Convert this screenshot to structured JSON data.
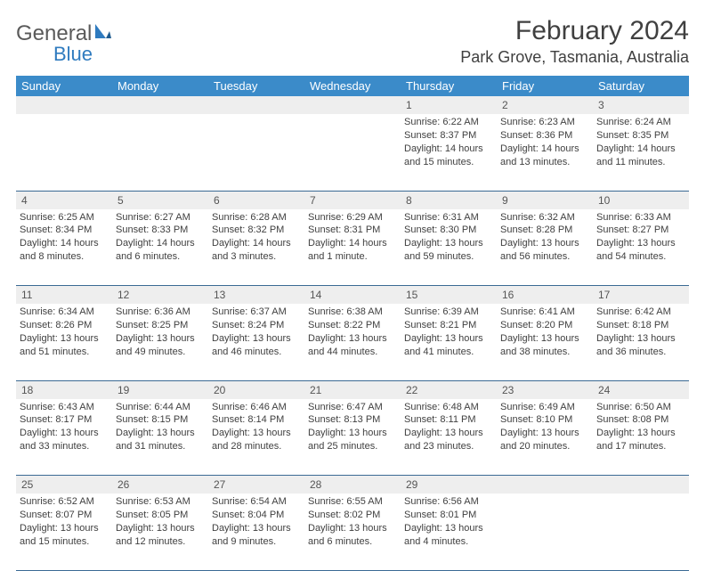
{
  "logo": {
    "text1": "General",
    "text2": "Blue"
  },
  "title": "February 2024",
  "location": "Park Grove, Tasmania, Australia",
  "colors": {
    "header_bg": "#3b8bc9",
    "header_fg": "#ffffff",
    "daynum_bg": "#eeeeee",
    "border": "#3b6a94",
    "logo_gray": "#5a5a5a",
    "logo_blue": "#2f7bbf"
  },
  "weekdays": [
    "Sunday",
    "Monday",
    "Tuesday",
    "Wednesday",
    "Thursday",
    "Friday",
    "Saturday"
  ],
  "weeks": [
    [
      null,
      null,
      null,
      null,
      {
        "n": "1",
        "sunrise": "6:22 AM",
        "sunset": "8:37 PM",
        "day_h": "14",
        "day_m": "15"
      },
      {
        "n": "2",
        "sunrise": "6:23 AM",
        "sunset": "8:36 PM",
        "day_h": "14",
        "day_m": "13"
      },
      {
        "n": "3",
        "sunrise": "6:24 AM",
        "sunset": "8:35 PM",
        "day_h": "14",
        "day_m": "11"
      }
    ],
    [
      {
        "n": "4",
        "sunrise": "6:25 AM",
        "sunset": "8:34 PM",
        "day_h": "14",
        "day_m": "8"
      },
      {
        "n": "5",
        "sunrise": "6:27 AM",
        "sunset": "8:33 PM",
        "day_h": "14",
        "day_m": "6"
      },
      {
        "n": "6",
        "sunrise": "6:28 AM",
        "sunset": "8:32 PM",
        "day_h": "14",
        "day_m": "3"
      },
      {
        "n": "7",
        "sunrise": "6:29 AM",
        "sunset": "8:31 PM",
        "day_h": "14",
        "day_m": "1",
        "singular": true
      },
      {
        "n": "8",
        "sunrise": "6:31 AM",
        "sunset": "8:30 PM",
        "day_h": "13",
        "day_m": "59"
      },
      {
        "n": "9",
        "sunrise": "6:32 AM",
        "sunset": "8:28 PM",
        "day_h": "13",
        "day_m": "56"
      },
      {
        "n": "10",
        "sunrise": "6:33 AM",
        "sunset": "8:27 PM",
        "day_h": "13",
        "day_m": "54"
      }
    ],
    [
      {
        "n": "11",
        "sunrise": "6:34 AM",
        "sunset": "8:26 PM",
        "day_h": "13",
        "day_m": "51"
      },
      {
        "n": "12",
        "sunrise": "6:36 AM",
        "sunset": "8:25 PM",
        "day_h": "13",
        "day_m": "49"
      },
      {
        "n": "13",
        "sunrise": "6:37 AM",
        "sunset": "8:24 PM",
        "day_h": "13",
        "day_m": "46"
      },
      {
        "n": "14",
        "sunrise": "6:38 AM",
        "sunset": "8:22 PM",
        "day_h": "13",
        "day_m": "44"
      },
      {
        "n": "15",
        "sunrise": "6:39 AM",
        "sunset": "8:21 PM",
        "day_h": "13",
        "day_m": "41"
      },
      {
        "n": "16",
        "sunrise": "6:41 AM",
        "sunset": "8:20 PM",
        "day_h": "13",
        "day_m": "38"
      },
      {
        "n": "17",
        "sunrise": "6:42 AM",
        "sunset": "8:18 PM",
        "day_h": "13",
        "day_m": "36"
      }
    ],
    [
      {
        "n": "18",
        "sunrise": "6:43 AM",
        "sunset": "8:17 PM",
        "day_h": "13",
        "day_m": "33"
      },
      {
        "n": "19",
        "sunrise": "6:44 AM",
        "sunset": "8:15 PM",
        "day_h": "13",
        "day_m": "31"
      },
      {
        "n": "20",
        "sunrise": "6:46 AM",
        "sunset": "8:14 PM",
        "day_h": "13",
        "day_m": "28"
      },
      {
        "n": "21",
        "sunrise": "6:47 AM",
        "sunset": "8:13 PM",
        "day_h": "13",
        "day_m": "25"
      },
      {
        "n": "22",
        "sunrise": "6:48 AM",
        "sunset": "8:11 PM",
        "day_h": "13",
        "day_m": "23"
      },
      {
        "n": "23",
        "sunrise": "6:49 AM",
        "sunset": "8:10 PM",
        "day_h": "13",
        "day_m": "20"
      },
      {
        "n": "24",
        "sunrise": "6:50 AM",
        "sunset": "8:08 PM",
        "day_h": "13",
        "day_m": "17"
      }
    ],
    [
      {
        "n": "25",
        "sunrise": "6:52 AM",
        "sunset": "8:07 PM",
        "day_h": "13",
        "day_m": "15"
      },
      {
        "n": "26",
        "sunrise": "6:53 AM",
        "sunset": "8:05 PM",
        "day_h": "13",
        "day_m": "12"
      },
      {
        "n": "27",
        "sunrise": "6:54 AM",
        "sunset": "8:04 PM",
        "day_h": "13",
        "day_m": "9"
      },
      {
        "n": "28",
        "sunrise": "6:55 AM",
        "sunset": "8:02 PM",
        "day_h": "13",
        "day_m": "6"
      },
      {
        "n": "29",
        "sunrise": "6:56 AM",
        "sunset": "8:01 PM",
        "day_h": "13",
        "day_m": "4"
      },
      null,
      null
    ]
  ]
}
